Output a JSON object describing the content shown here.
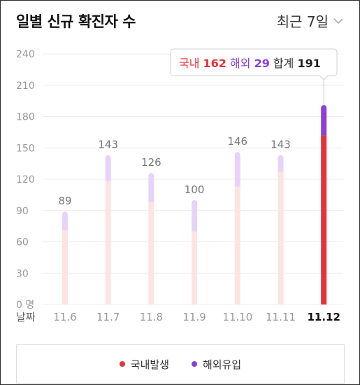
{
  "header": {
    "title": "일별 신규 확진자 수",
    "period_label": "최근 7일"
  },
  "tooltip": {
    "domestic_label": "국내",
    "domestic_value": "162",
    "overseas_label": "해외",
    "overseas_value": "29",
    "total_label": "합계",
    "total_value": "191"
  },
  "legend": {
    "domestic": "국내발생",
    "overseas": "해외유입"
  },
  "colors": {
    "domestic": "#e8323a",
    "overseas": "#8e3fd8",
    "domestic_faded": "#fde3e2",
    "overseas_faded": "#e7d3f9",
    "grid": "#ececec",
    "axis_text": "#999999"
  },
  "chart_data": {
    "type": "bar",
    "stacked": true,
    "categories": [
      "11.6",
      "11.7",
      "11.8",
      "11.9",
      "11.10",
      "11.11",
      "11.12"
    ],
    "series": [
      {
        "name": "국내발생",
        "values": [
          71,
          118,
          98,
          70,
          113,
          127,
          162
        ]
      },
      {
        "name": "해외유입",
        "values": [
          18,
          25,
          28,
          30,
          33,
          16,
          29
        ]
      }
    ],
    "totals": [
      89,
      143,
      126,
      100,
      146,
      143,
      191
    ],
    "highlight_index": 6,
    "y_ticks": [
      "0 명",
      "30",
      "60",
      "90",
      "120",
      "150",
      "180",
      "210",
      "240"
    ],
    "ylim": [
      0,
      240
    ],
    "xlabel": "날짜",
    "grid": true
  }
}
